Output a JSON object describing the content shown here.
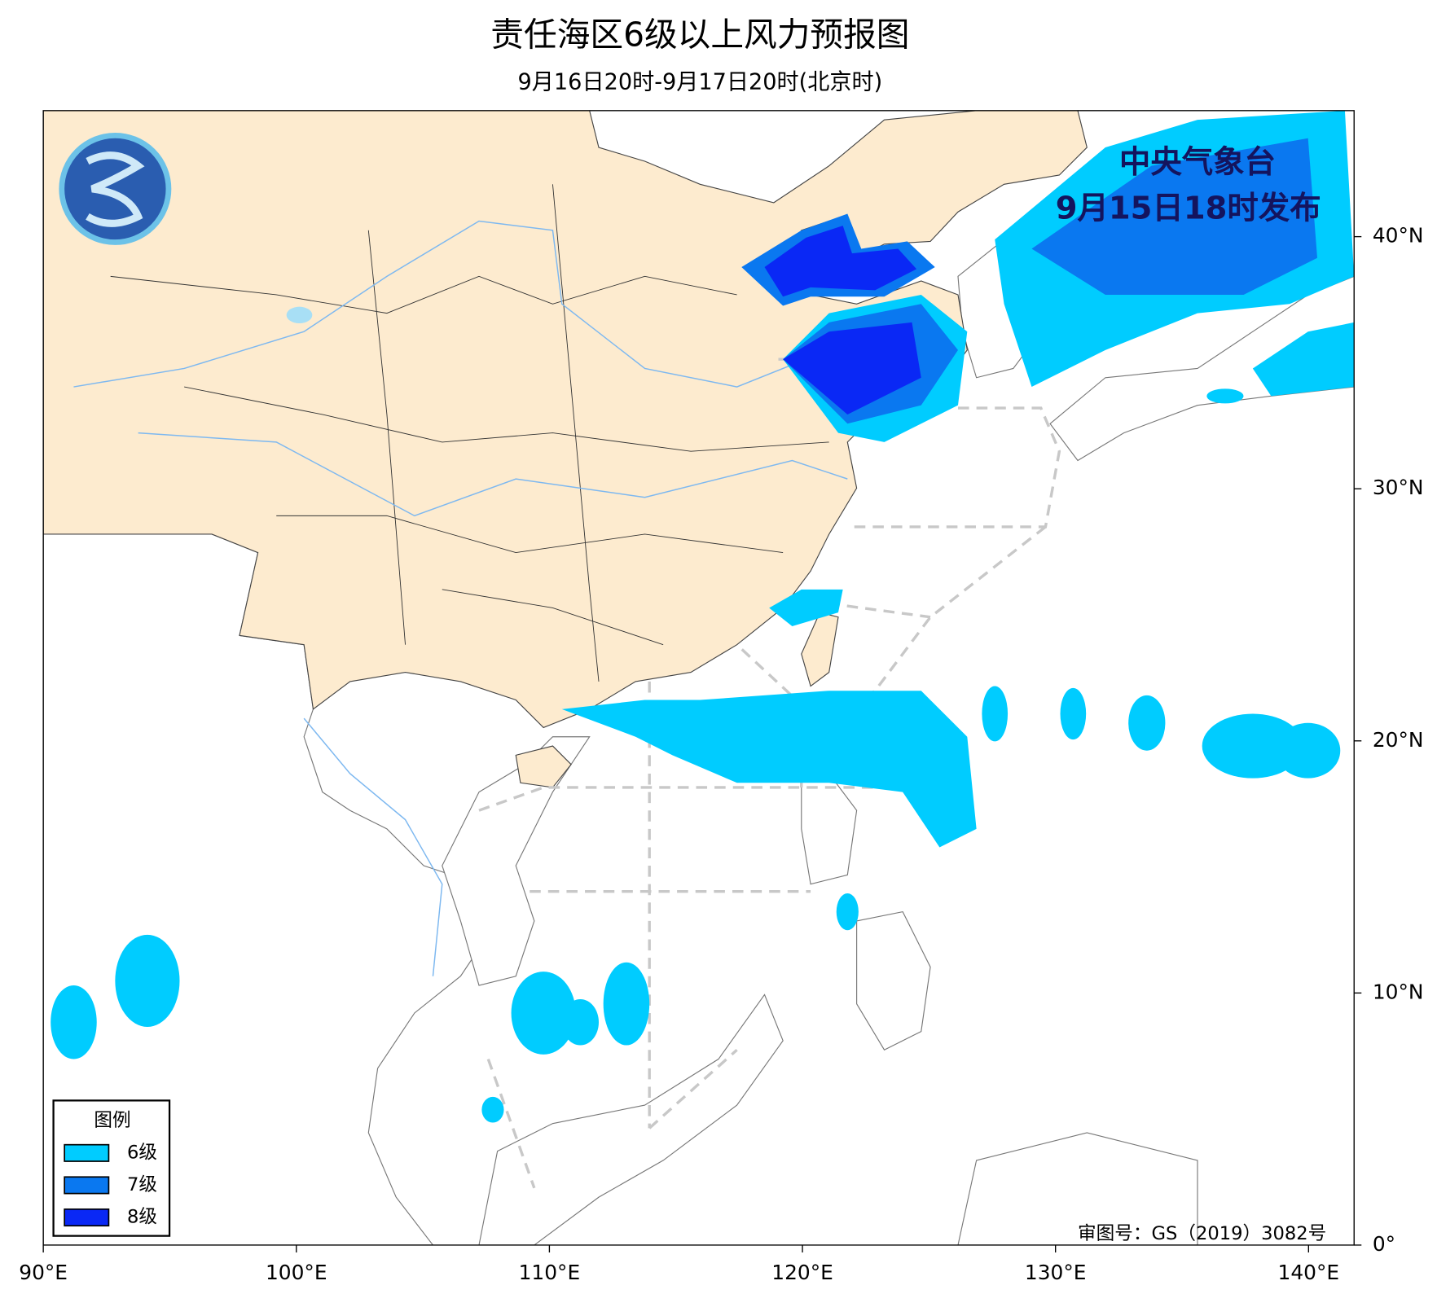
{
  "header": {
    "title": "责任海区6级以上风力预报图",
    "subtitle": "9月16日20时-9月17日20时(北京时)"
  },
  "issuer": {
    "name": "中央气象台",
    "time": "9月15日18时发布"
  },
  "legend": {
    "title": "图例",
    "items": [
      {
        "label": "6级",
        "color": "#00ccff"
      },
      {
        "label": "7级",
        "color": "#0a78f0"
      },
      {
        "label": "8级",
        "color": "#0a28f5"
      }
    ]
  },
  "credit": "审图号：GS（2019）3082号",
  "map": {
    "lonlim": [
      90,
      141.8
    ],
    "latlim": [
      0,
      45
    ],
    "xticks": [
      {
        "value": 90,
        "label": "90°E"
      },
      {
        "value": 100,
        "label": "100°E"
      },
      {
        "value": 110,
        "label": "110°E"
      },
      {
        "value": 120,
        "label": "120°E"
      },
      {
        "value": 130,
        "label": "130°E"
      },
      {
        "value": 140,
        "label": "140°E"
      }
    ],
    "yticks": [
      {
        "value": 0,
        "label": "0°"
      },
      {
        "value": 10,
        "label": "10°N"
      },
      {
        "value": 20,
        "label": "20°N"
      },
      {
        "value": 30,
        "label": "30°N"
      },
      {
        "value": 40,
        "label": "40°N"
      }
    ]
  }
}
